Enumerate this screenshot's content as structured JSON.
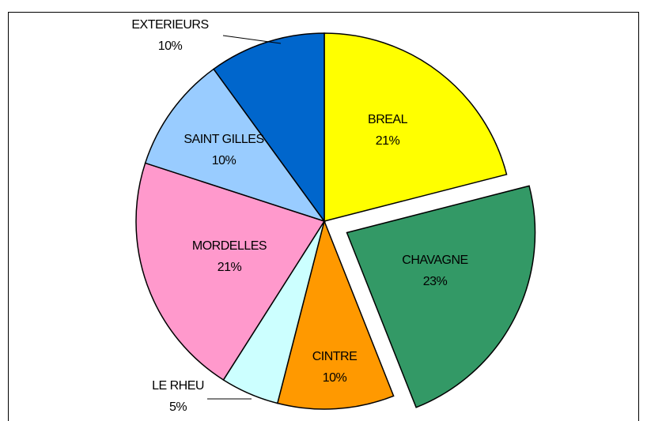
{
  "chart_data": {
    "type": "pie",
    "categories": [
      "BREAL",
      "CHAVAGNE",
      "CINTRE",
      "LE RHEU",
      "MORDELLES",
      "SAINT GILLES",
      "EXTERIEURS"
    ],
    "values": [
      21,
      23,
      10,
      5,
      21,
      10,
      10
    ],
    "value_labels": [
      "21%",
      "23%",
      "10%",
      "5%",
      "21%",
      "10%",
      "10%"
    ],
    "colors": [
      "#ffff00",
      "#339966",
      "#ff9900",
      "#ccffff",
      "#ff99cc",
      "#99ccff",
      "#0066cc"
    ]
  }
}
